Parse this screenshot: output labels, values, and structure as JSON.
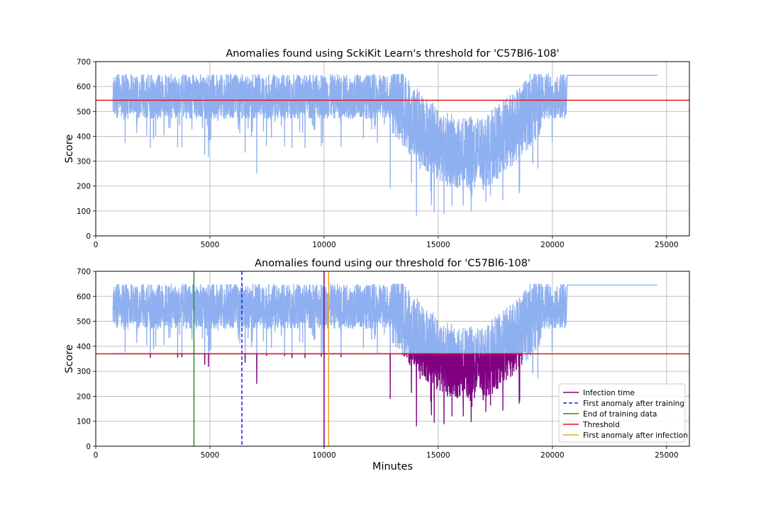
{
  "chart_data": [
    {
      "type": "line",
      "title": "Anomalies found using SckiKit Learn's threshold for 'C57Bl6-108'",
      "xlabel": "",
      "ylabel": "Score",
      "xlim": [
        0,
        26000
      ],
      "ylim": [
        0,
        700
      ],
      "xticks": [
        0,
        5000,
        10000,
        15000,
        20000,
        25000
      ],
      "yticks": [
        0,
        100,
        200,
        300,
        400,
        500,
        600,
        700
      ],
      "grid": true,
      "threshold": 545,
      "colors": {
        "score": "#8fb0f0",
        "threshold": "#e0141e"
      }
    },
    {
      "type": "line",
      "title": "Anomalies found using our threshold for 'C57Bl6-108'",
      "xlabel": "Minutes",
      "ylabel": "Score",
      "xlim": [
        0,
        26000
      ],
      "ylim": [
        0,
        700
      ],
      "xticks": [
        0,
        5000,
        10000,
        15000,
        20000,
        25000
      ],
      "yticks": [
        0,
        100,
        200,
        300,
        400,
        500,
        600,
        700
      ],
      "grid": true,
      "threshold": 370,
      "infection_time": 10000,
      "first_anomaly_after_training": 6400,
      "end_of_training_data": 4300,
      "first_anomaly_after_infection": 10200,
      "legend_position": "lower-right",
      "legend": [
        {
          "label": "Infection time",
          "color": "#800080",
          "style": "solid"
        },
        {
          "label": "First anomaly after training",
          "color": "#1a1aff",
          "style": "dashed"
        },
        {
          "label": "End of training data",
          "color": "#2e8b2e",
          "style": "solid"
        },
        {
          "label": "Threshold",
          "color": "#e0141e",
          "style": "solid"
        },
        {
          "label": "First anomaly after infection",
          "color": "#f0a020",
          "style": "solid"
        }
      ],
      "colors": {
        "score": "#8fb0f0",
        "anomaly": "#800080"
      }
    }
  ],
  "series_shape": {
    "x_start": 750,
    "x_dense_end": 20600,
    "flat_end": 24600,
    "flat_value": 645,
    "anomaly_end": 18700,
    "min_points": [
      {
        "x": 14050,
        "y": 80
      },
      {
        "x": 12900,
        "y": 190
      },
      {
        "x": 15600,
        "y": 120
      },
      {
        "x": 16100,
        "y": 120
      },
      {
        "x": 7050,
        "y": 250
      }
    ]
  }
}
